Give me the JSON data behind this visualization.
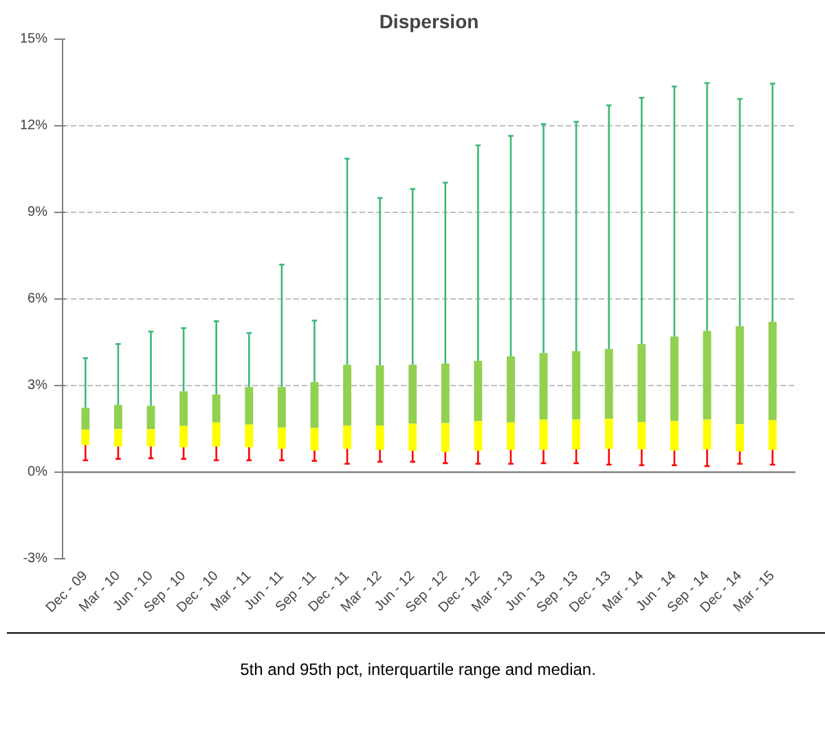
{
  "chart_data": {
    "type": "box",
    "title": "Dispersion",
    "categories": [
      "Dec - 09",
      "Mar - 10",
      "Jun - 10",
      "Sep - 10",
      "Dec - 10",
      "Mar - 11",
      "Jun - 11",
      "Sep - 11",
      "Dec - 11",
      "Mar - 12",
      "Jun - 12",
      "Sep - 12",
      "Dec - 12",
      "Mar - 13",
      "Jun - 13",
      "Sep - 13",
      "Dec - 13",
      "Mar - 14",
      "Jun - 14",
      "Sep - 14",
      "Dec - 14",
      "Mar - 15"
    ],
    "boxes": [
      {
        "low": 0.41,
        "q1": 0.94,
        "median": 1.47,
        "q3": 2.23,
        "high": 3.95
      },
      {
        "low": 0.46,
        "q1": 0.89,
        "median": 1.49,
        "q3": 2.33,
        "high": 4.44
      },
      {
        "low": 0.48,
        "q1": 0.89,
        "median": 1.49,
        "q3": 2.3,
        "high": 4.87
      },
      {
        "low": 0.46,
        "q1": 0.86,
        "median": 1.6,
        "q3": 2.8,
        "high": 4.99
      },
      {
        "low": 0.41,
        "q1": 0.89,
        "median": 1.72,
        "q3": 2.69,
        "high": 5.23
      },
      {
        "low": 0.41,
        "q1": 0.86,
        "median": 1.65,
        "q3": 2.95,
        "high": 4.82
      },
      {
        "low": 0.41,
        "q1": 0.81,
        "median": 1.54,
        "q3": 2.95,
        "high": 7.19
      },
      {
        "low": 0.39,
        "q1": 0.75,
        "median": 1.53,
        "q3": 3.12,
        "high": 5.25
      },
      {
        "low": 0.29,
        "q1": 0.81,
        "median": 1.61,
        "q3": 3.72,
        "high": 10.86
      },
      {
        "low": 0.36,
        "q1": 0.77,
        "median": 1.61,
        "q3": 3.7,
        "high": 9.5
      },
      {
        "low": 0.36,
        "q1": 0.74,
        "median": 1.68,
        "q3": 3.72,
        "high": 9.81
      },
      {
        "low": 0.31,
        "q1": 0.7,
        "median": 1.7,
        "q3": 3.76,
        "high": 10.03
      },
      {
        "low": 0.29,
        "q1": 0.74,
        "median": 1.77,
        "q3": 3.86,
        "high": 11.32
      },
      {
        "low": 0.29,
        "q1": 0.77,
        "median": 1.72,
        "q3": 4.01,
        "high": 11.65
      },
      {
        "low": 0.31,
        "q1": 0.77,
        "median": 1.82,
        "q3": 4.13,
        "high": 12.06
      },
      {
        "low": 0.31,
        "q1": 0.79,
        "median": 1.82,
        "q3": 4.19,
        "high": 12.14
      },
      {
        "low": 0.26,
        "q1": 0.81,
        "median": 1.85,
        "q3": 4.27,
        "high": 12.71
      },
      {
        "low": 0.24,
        "q1": 0.79,
        "median": 1.73,
        "q3": 4.44,
        "high": 12.97
      },
      {
        "low": 0.24,
        "q1": 0.75,
        "median": 1.77,
        "q3": 4.7,
        "high": 13.36
      },
      {
        "low": 0.21,
        "q1": 0.79,
        "median": 1.82,
        "q3": 4.89,
        "high": 13.48
      },
      {
        "low": 0.29,
        "q1": 0.72,
        "median": 1.66,
        "q3": 5.06,
        "high": 12.93
      },
      {
        "low": 0.26,
        "q1": 0.77,
        "median": 1.8,
        "q3": 5.21,
        "high": 13.46
      }
    ],
    "color": "#ffff00",
    "ylim": [
      -3,
      15
    ],
    "yticks": [
      {
        "value": -3,
        "label": "-3%"
      },
      {
        "value": 0,
        "label": "0%"
      },
      {
        "value": 3,
        "label": "3%"
      },
      {
        "value": 6,
        "label": "6%"
      },
      {
        "value": 9,
        "label": "9%"
      },
      {
        "value": 12,
        "label": "12%"
      },
      {
        "value": 15,
        "label": "15%"
      }
    ],
    "grid": "y",
    "ref_lines": [
      {
        "axis": "y",
        "value": 0,
        "color": "#808080"
      }
    ],
    "annotations": [
      "5th and 95th pct, interquartile range and median."
    ]
  }
}
